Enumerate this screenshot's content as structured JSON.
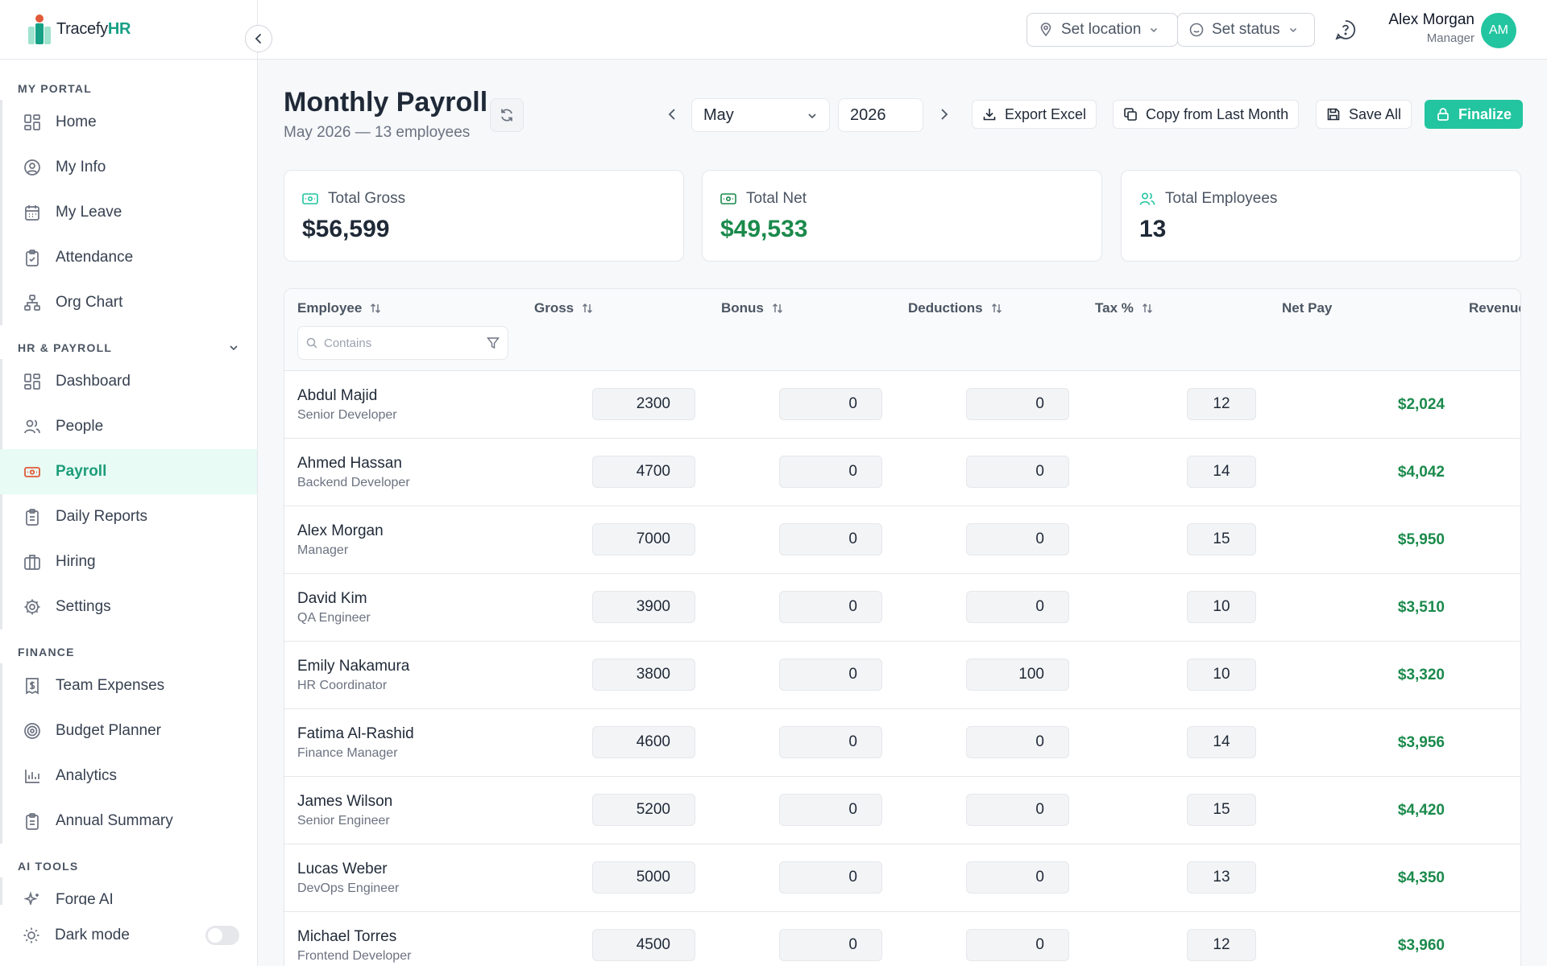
{
  "app": {
    "logo_prefix": "Tracefy",
    "logo_suffix": "HR"
  },
  "sidebar": {
    "sections": [
      {
        "title": "MY PORTAL",
        "items": [
          {
            "label": "Home",
            "icon": "grid-icon"
          },
          {
            "label": "My Info",
            "icon": "user-circle-icon"
          },
          {
            "label": "My Leave",
            "icon": "calendar-icon"
          },
          {
            "label": "Attendance",
            "icon": "clipboard-check-icon"
          },
          {
            "label": "Org Chart",
            "icon": "org-chart-icon"
          }
        ]
      },
      {
        "title": "HR & PAYROLL",
        "items": [
          {
            "label": "Dashboard",
            "icon": "grid-icon"
          },
          {
            "label": "People",
            "icon": "users-icon"
          },
          {
            "label": "Payroll",
            "icon": "banknote-icon",
            "active": true
          },
          {
            "label": "Daily Reports",
            "icon": "clipboard-list-icon"
          },
          {
            "label": "Hiring",
            "icon": "briefcase-icon"
          },
          {
            "label": "Settings",
            "icon": "gear-icon"
          }
        ]
      },
      {
        "title": "FINANCE",
        "items": [
          {
            "label": "Team Expenses",
            "icon": "receipt-dollar-icon"
          },
          {
            "label": "Budget Planner",
            "icon": "target-icon"
          },
          {
            "label": "Analytics",
            "icon": "bar-chart-icon"
          },
          {
            "label": "Annual Summary",
            "icon": "clipboard-list-icon"
          }
        ]
      },
      {
        "title": "AI TOOLS",
        "items": [
          {
            "label": "Forge AI",
            "icon": "sparkles-icon"
          }
        ]
      }
    ],
    "dark_mode_label": "Dark mode"
  },
  "topbar": {
    "location_label": "Set location",
    "status_label": "Set status",
    "user_name": "Alex Morgan",
    "user_role": "Manager",
    "avatar_initials": "AM"
  },
  "page": {
    "title": "Monthly Payroll",
    "subtitle": "May 2026 — 13 employees",
    "month": "May",
    "year": "2026",
    "export_label": "Export Excel",
    "copy_label": "Copy from Last Month",
    "save_label": "Save All",
    "finalize_label": "Finalize"
  },
  "summary": {
    "gross_label": "Total Gross",
    "gross_value": "$56,599",
    "net_label": "Total Net",
    "net_value": "$49,533",
    "employees_label": "Total Employees",
    "employees_value": "13"
  },
  "table": {
    "columns": [
      "Employee",
      "Gross",
      "Bonus",
      "Deductions",
      "Tax %",
      "Net Pay",
      "Revenue"
    ],
    "filter_placeholder": "Contains",
    "rows": [
      {
        "name": "Abdul Majid",
        "role": "Senior Developer",
        "gross": "2300",
        "bonus": "0",
        "deductions": "0",
        "tax": "12",
        "net": "$2,024"
      },
      {
        "name": "Ahmed Hassan",
        "role": "Backend Developer",
        "gross": "4700",
        "bonus": "0",
        "deductions": "0",
        "tax": "14",
        "net": "$4,042"
      },
      {
        "name": "Alex Morgan",
        "role": "Manager",
        "gross": "7000",
        "bonus": "0",
        "deductions": "0",
        "tax": "15",
        "net": "$5,950"
      },
      {
        "name": "David Kim",
        "role": "QA Engineer",
        "gross": "3900",
        "bonus": "0",
        "deductions": "0",
        "tax": "10",
        "net": "$3,510"
      },
      {
        "name": "Emily Nakamura",
        "role": "HR Coordinator",
        "gross": "3800",
        "bonus": "0",
        "deductions": "100",
        "tax": "10",
        "net": "$3,320"
      },
      {
        "name": "Fatima Al-Rashid",
        "role": "Finance Manager",
        "gross": "4600",
        "bonus": "0",
        "deductions": "0",
        "tax": "14",
        "net": "$3,956"
      },
      {
        "name": "James Wilson",
        "role": "Senior Engineer",
        "gross": "5200",
        "bonus": "0",
        "deductions": "0",
        "tax": "15",
        "net": "$4,420"
      },
      {
        "name": "Lucas Weber",
        "role": "DevOps Engineer",
        "gross": "5000",
        "bonus": "0",
        "deductions": "0",
        "tax": "13",
        "net": "$4,350"
      },
      {
        "name": "Michael Torres",
        "role": "Frontend Developer",
        "gross": "4500",
        "bonus": "0",
        "deductions": "0",
        "tax": "12",
        "net": "$3,960"
      }
    ]
  },
  "colors": {
    "accent": "#22c5a0",
    "positive": "#1b8a4c",
    "payroll_icon": "#e05a3a"
  }
}
